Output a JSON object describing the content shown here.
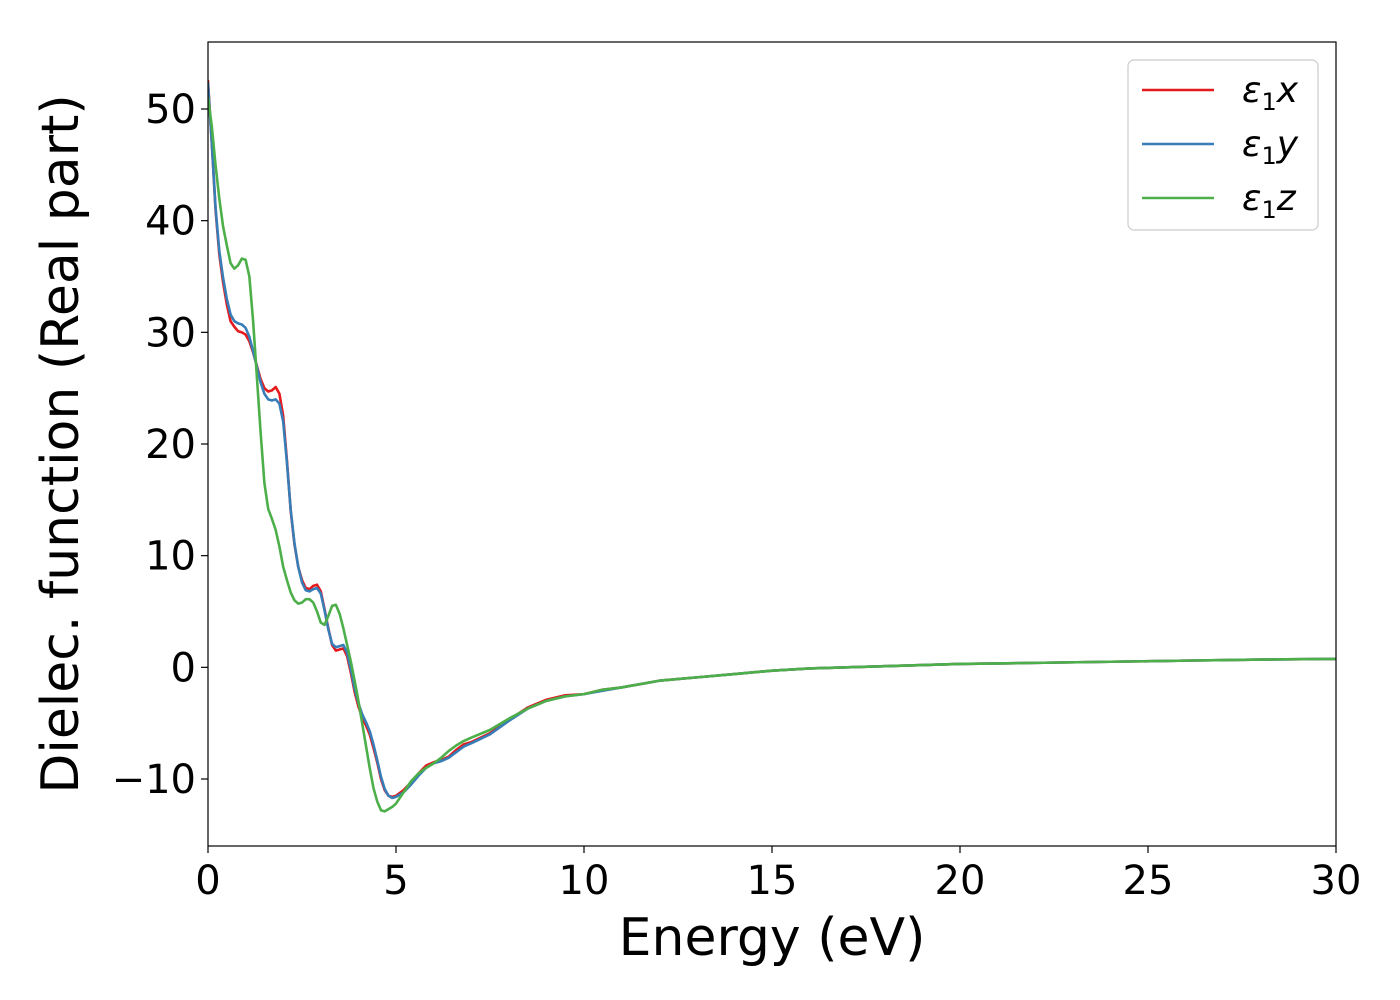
{
  "chart_data": {
    "type": "line",
    "xlabel": "Energy (eV)",
    "ylabel": "Dielec. function (Real part)",
    "xlim": [
      0,
      30
    ],
    "ylim": [
      -16,
      56
    ],
    "xticks": [
      0,
      5,
      10,
      15,
      20,
      25,
      30
    ],
    "xtick_labels": [
      "0",
      "5",
      "10",
      "15",
      "20",
      "25",
      "30"
    ],
    "yticks": [
      -10,
      0,
      10,
      20,
      30,
      40,
      50
    ],
    "ytick_labels": [
      "−10",
      "0",
      "10",
      "20",
      "30",
      "40",
      "50"
    ],
    "grid": false,
    "legend_position": "top-right",
    "series": [
      {
        "name": "ε1x",
        "label_main": "ε",
        "label_sub": "1",
        "label_var": "x",
        "color": "#e41a1c",
        "x": [
          0,
          0.1,
          0.2,
          0.3,
          0.4,
          0.5,
          0.6,
          0.7,
          0.8,
          0.9,
          1.0,
          1.1,
          1.2,
          1.3,
          1.4,
          1.5,
          1.6,
          1.7,
          1.8,
          1.9,
          2.0,
          2.1,
          2.2,
          2.3,
          2.4,
          2.5,
          2.6,
          2.7,
          2.8,
          2.9,
          3.0,
          3.1,
          3.2,
          3.3,
          3.4,
          3.5,
          3.6,
          3.7,
          3.8,
          3.9,
          4.0,
          4.1,
          4.2,
          4.3,
          4.4,
          4.5,
          4.6,
          4.7,
          4.8,
          4.9,
          5.0,
          5.2,
          5.4,
          5.6,
          5.8,
          6.0,
          6.2,
          6.4,
          6.6,
          6.8,
          7.0,
          7.5,
          8.0,
          8.5,
          9.0,
          9.5,
          10.0,
          10.5,
          11.0,
          12.0,
          13.0,
          14.0,
          15.0,
          16.0,
          17.0,
          18.0,
          20.0,
          22.0,
          24.0,
          26.0,
          28.0,
          30.0
        ],
        "y": [
          52.5,
          47.0,
          41.0,
          37.0,
          34.5,
          32.5,
          31.0,
          30.5,
          30.1,
          30.0,
          29.8,
          29.2,
          28.2,
          27.0,
          25.8,
          25.0,
          24.7,
          24.8,
          25.1,
          24.5,
          22.5,
          18.5,
          14.0,
          11.0,
          9.0,
          7.8,
          7.1,
          7.0,
          7.3,
          7.4,
          6.8,
          5.2,
          3.5,
          2.0,
          1.5,
          1.6,
          1.7,
          1.0,
          -0.5,
          -2.2,
          -3.5,
          -4.5,
          -5.2,
          -6.0,
          -7.2,
          -8.5,
          -10.0,
          -11.0,
          -11.5,
          -11.6,
          -11.5,
          -11.0,
          -10.3,
          -9.5,
          -8.8,
          -8.5,
          -8.3,
          -8.0,
          -7.4,
          -6.9,
          -6.7,
          -5.9,
          -4.7,
          -3.6,
          -2.9,
          -2.5,
          -2.4,
          -2.0,
          -1.8,
          -1.2,
          -0.9,
          -0.6,
          -0.3,
          -0.1,
          0.0,
          0.1,
          0.3,
          0.4,
          0.5,
          0.6,
          0.7,
          0.75
        ]
      },
      {
        "name": "ε1y",
        "label_main": "ε",
        "label_sub": "1",
        "label_var": "y",
        "color": "#377eb8",
        "x": [
          0,
          0.1,
          0.2,
          0.3,
          0.4,
          0.5,
          0.6,
          0.7,
          0.8,
          0.9,
          1.0,
          1.1,
          1.2,
          1.3,
          1.4,
          1.5,
          1.6,
          1.7,
          1.8,
          1.9,
          2.0,
          2.1,
          2.2,
          2.3,
          2.4,
          2.5,
          2.6,
          2.7,
          2.8,
          2.9,
          3.0,
          3.1,
          3.2,
          3.3,
          3.4,
          3.5,
          3.6,
          3.7,
          3.8,
          3.9,
          4.0,
          4.1,
          4.2,
          4.3,
          4.4,
          4.5,
          4.6,
          4.7,
          4.8,
          4.9,
          5.0,
          5.2,
          5.4,
          5.6,
          5.8,
          6.0,
          6.2,
          6.4,
          6.6,
          6.8,
          7.0,
          7.5,
          8.0,
          8.5,
          9.0,
          9.5,
          10.0,
          10.5,
          11.0,
          12.0,
          13.0,
          14.0,
          15.0,
          16.0,
          17.0,
          18.0,
          20.0,
          22.0,
          24.0,
          26.0,
          28.0,
          30.0
        ],
        "y": [
          52.3,
          47.0,
          41.2,
          37.3,
          34.9,
          33.0,
          31.6,
          31.0,
          30.8,
          30.7,
          30.4,
          29.6,
          28.3,
          26.9,
          25.5,
          24.5,
          24.0,
          23.9,
          24.0,
          23.6,
          22.0,
          18.3,
          14.1,
          11.1,
          9.0,
          7.6,
          6.9,
          6.8,
          7.0,
          7.1,
          6.6,
          5.1,
          3.4,
          2.1,
          1.8,
          1.9,
          2.0,
          1.3,
          -0.2,
          -1.9,
          -3.2,
          -4.2,
          -4.9,
          -5.7,
          -6.9,
          -8.3,
          -9.8,
          -10.9,
          -11.5,
          -11.7,
          -11.6,
          -11.2,
          -10.5,
          -9.7,
          -9.0,
          -8.6,
          -8.4,
          -8.1,
          -7.6,
          -7.1,
          -6.8,
          -6.0,
          -4.8,
          -3.7,
          -3.0,
          -2.6,
          -2.4,
          -2.1,
          -1.8,
          -1.2,
          -0.9,
          -0.6,
          -0.3,
          -0.1,
          0.0,
          0.1,
          0.3,
          0.4,
          0.5,
          0.6,
          0.7,
          0.75
        ]
      },
      {
        "name": "ε1z",
        "label_main": "ε",
        "label_sub": "1",
        "label_var": "z",
        "color": "#4daf4a",
        "x": [
          0,
          0.1,
          0.2,
          0.3,
          0.4,
          0.5,
          0.6,
          0.7,
          0.8,
          0.9,
          1.0,
          1.1,
          1.2,
          1.3,
          1.4,
          1.5,
          1.6,
          1.7,
          1.8,
          1.9,
          2.0,
          2.1,
          2.2,
          2.3,
          2.4,
          2.5,
          2.6,
          2.7,
          2.8,
          2.9,
          3.0,
          3.1,
          3.2,
          3.3,
          3.4,
          3.5,
          3.6,
          3.7,
          3.8,
          3.9,
          4.0,
          4.1,
          4.2,
          4.3,
          4.4,
          4.5,
          4.6,
          4.7,
          4.8,
          4.9,
          5.0,
          5.2,
          5.4,
          5.6,
          5.8,
          6.0,
          6.2,
          6.4,
          6.6,
          6.8,
          7.0,
          7.5,
          8.0,
          8.5,
          9.0,
          9.5,
          10.0,
          10.5,
          11.0,
          12.0,
          13.0,
          14.0,
          15.0,
          16.0,
          17.0,
          18.0,
          20.0,
          22.0,
          24.0,
          26.0,
          28.0,
          30.0
        ],
        "y": [
          51.0,
          48.5,
          45.0,
          42.0,
          39.5,
          37.8,
          36.2,
          35.7,
          36.0,
          36.6,
          36.5,
          35.0,
          31.0,
          26.0,
          21.0,
          16.5,
          14.2,
          13.3,
          12.3,
          10.8,
          9.0,
          7.8,
          6.7,
          6.0,
          5.7,
          5.8,
          6.1,
          6.1,
          5.8,
          5.0,
          4.0,
          3.8,
          4.6,
          5.5,
          5.6,
          4.8,
          3.5,
          2.0,
          0.5,
          -1.2,
          -3.0,
          -5.0,
          -7.0,
          -9.0,
          -10.8,
          -12.0,
          -12.8,
          -12.9,
          -12.7,
          -12.5,
          -12.2,
          -11.2,
          -10.2,
          -9.5,
          -9.0,
          -8.6,
          -8.1,
          -7.5,
          -7.0,
          -6.6,
          -6.3,
          -5.6,
          -4.6,
          -3.7,
          -3.0,
          -2.6,
          -2.4,
          -2.0,
          -1.8,
          -1.2,
          -0.9,
          -0.6,
          -0.3,
          -0.1,
          0.0,
          0.1,
          0.3,
          0.4,
          0.5,
          0.6,
          0.7,
          0.75
        ]
      }
    ]
  }
}
